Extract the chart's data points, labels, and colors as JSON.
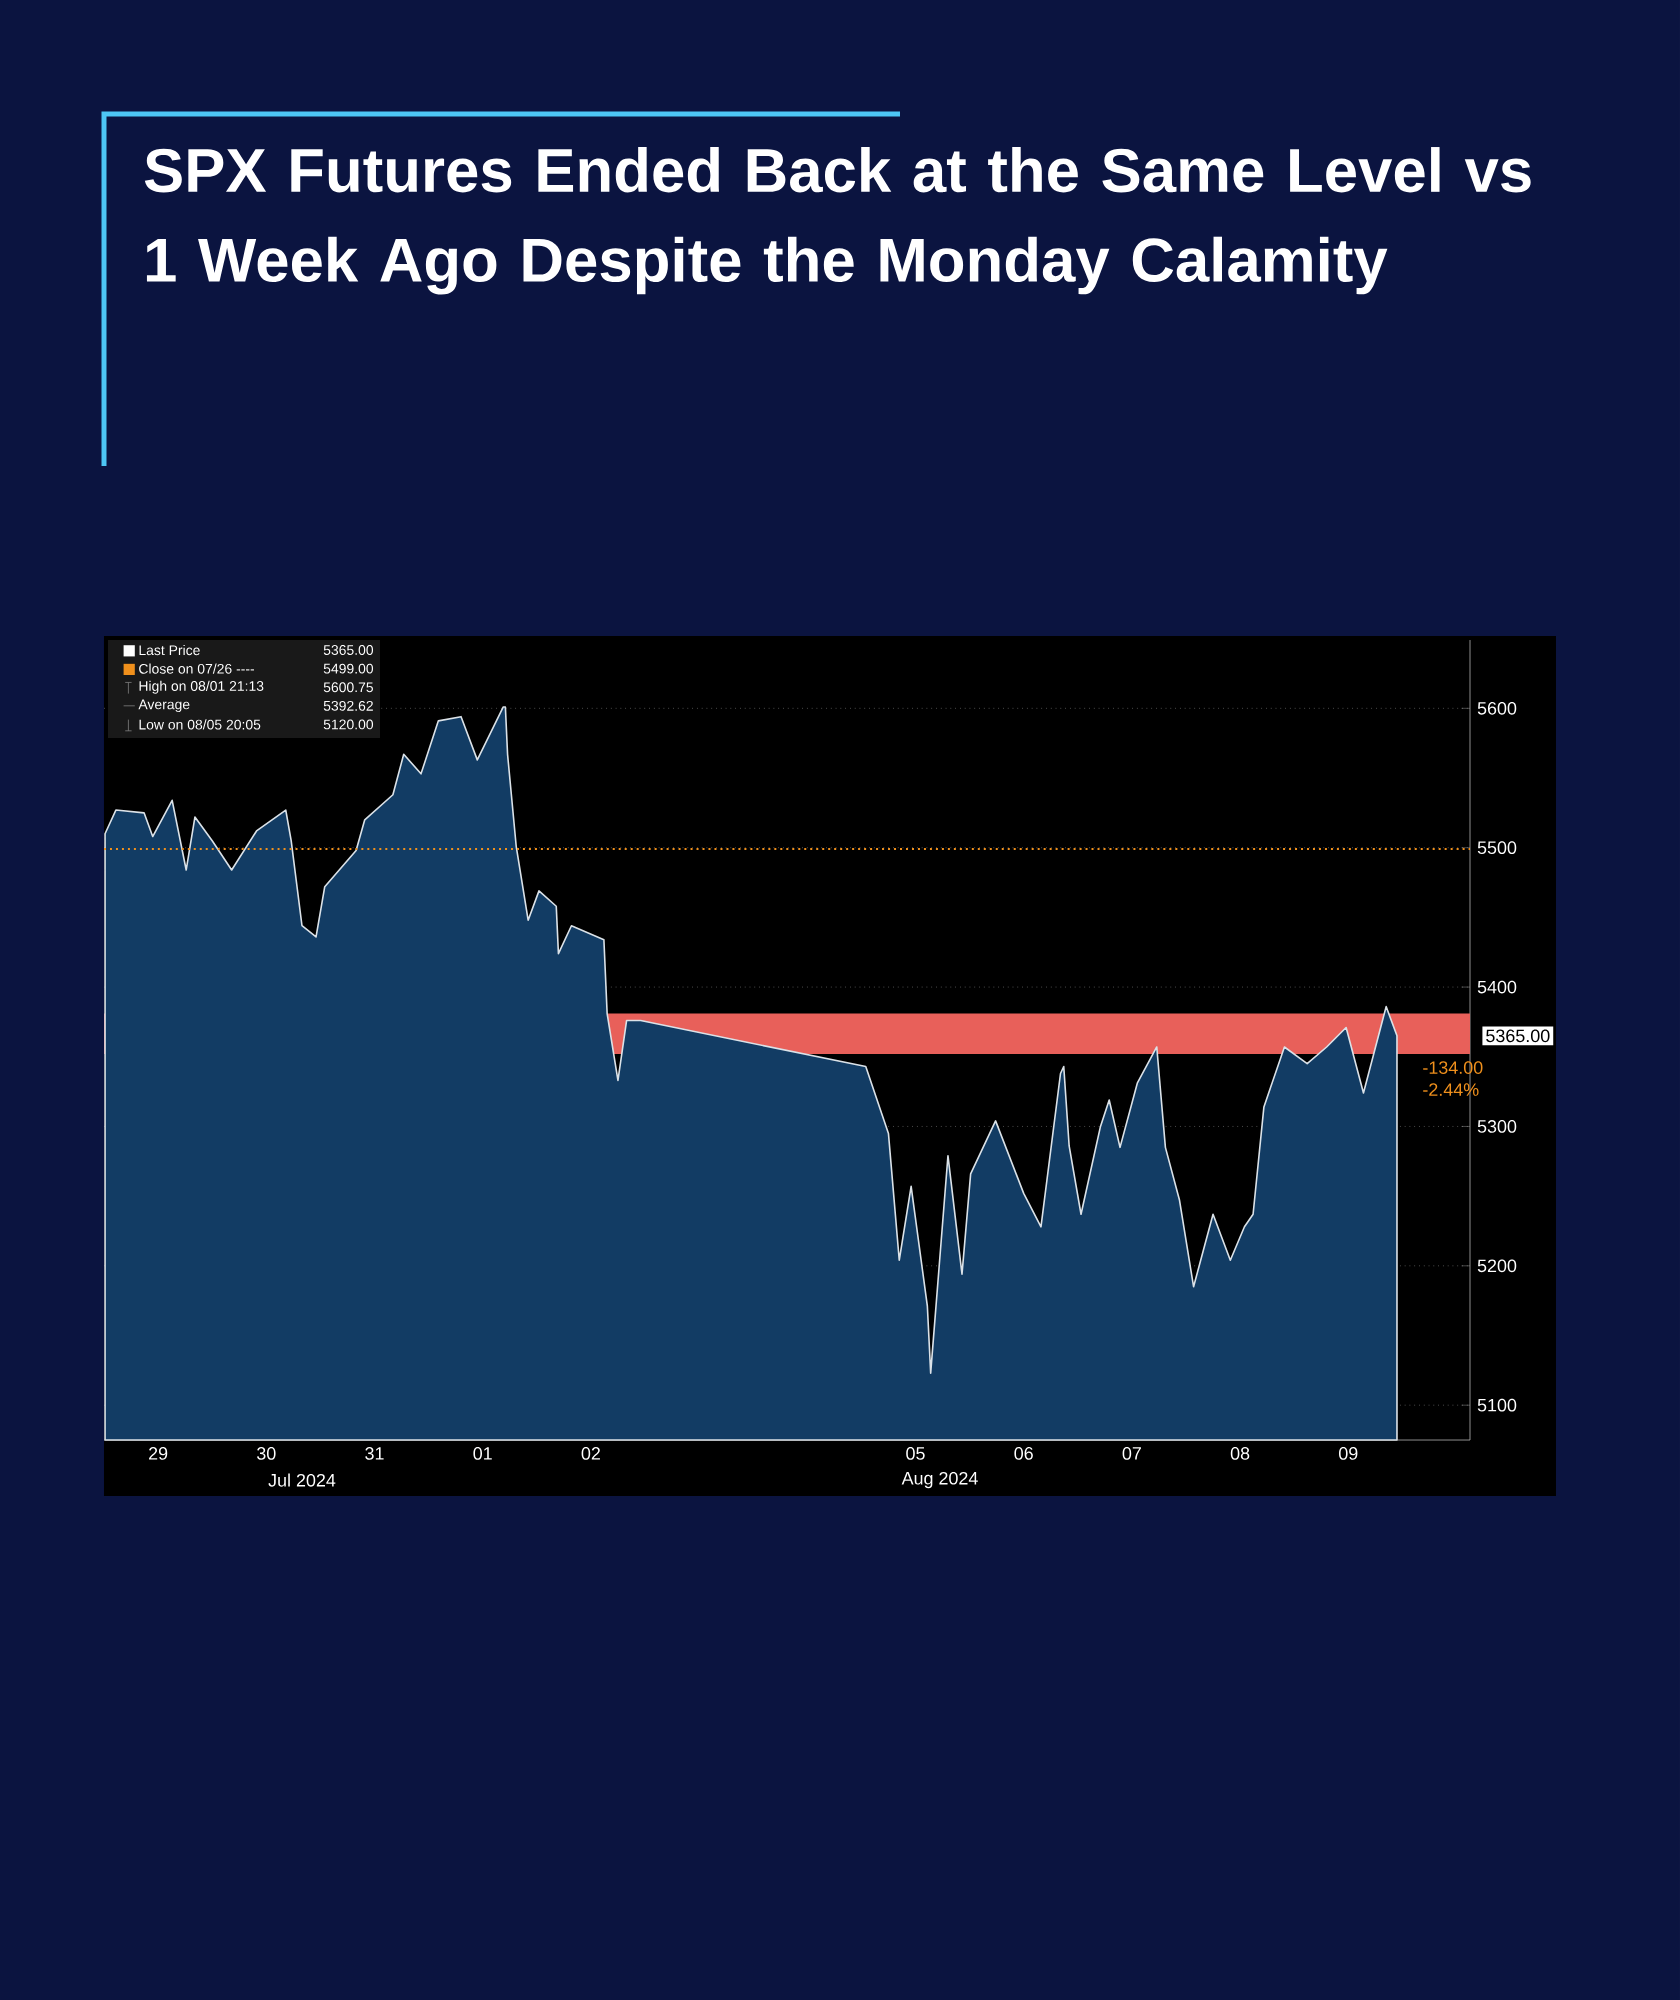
{
  "chart_data": {
    "type": "area",
    "title": "SPX Futures Ended Back at the Same Level vs 1 Week Ago Despite the Monday Calamity",
    "x": [
      "2024-07-29T05:14",
      "2024-07-29T07:38",
      "2024-07-29T13:53",
      "2024-07-29T15:48",
      "2024-07-29T20:07",
      "2024-07-29T23:14",
      "2024-07-30T01:10",
      "2024-07-30T05:00",
      "2024-07-30T09:19",
      "2024-07-30T14:50",
      "2024-07-30T21:19",
      "2024-07-30T22:31",
      "2024-07-31T00:55",
      "2024-07-31T04:02",
      "2024-07-31T05:58",
      "2024-07-31T12:55",
      "2024-07-31T14:50",
      "2024-07-31T21:05",
      "2024-07-31T23:29",
      "2024-08-01T03:19",
      "2024-08-01T07:10",
      "2024-08-01T12:12",
      "2024-08-01T15:48",
      "2024-08-01T21:34",
      "2024-08-01T22:02",
      "2024-08-01T22:31",
      "2024-08-02T00:26",
      "2024-08-02T03:05",
      "2024-08-02T05:29",
      "2024-08-02T09:19",
      "2024-08-02T09:48",
      "2024-08-02T12:41",
      "2024-08-02T19:53",
      "2024-08-02T20:36",
      "2024-08-02T23:00",
      "2024-08-03T00:55",
      "2024-08-03T04:02",
      "2024-08-05T05:58",
      "2024-08-05T11:00",
      "2024-08-05T13:24",
      "2024-08-05T16:02",
      "2024-08-05T19:38",
      "2024-08-05T20:22",
      "2024-08-06T00:12",
      "2024-08-06T03:19",
      "2024-08-06T05:14",
      "2024-08-06T10:46",
      "2024-08-06T17:00",
      "2024-08-06T20:50",
      "2024-08-07T01:10",
      "2024-08-07T01:53",
      "2024-08-07T03:05",
      "2024-08-07T05:43",
      "2024-08-07T10:02",
      "2024-08-07T11:58",
      "2024-08-07T14:22",
      "2024-08-07T18:12",
      "2024-08-07T22:31",
      "2024-08-08T00:26",
      "2024-08-08T03:34",
      "2024-08-08T06:41",
      "2024-08-08T11:00",
      "2024-08-08T14:50",
      "2024-08-08T17:58",
      "2024-08-08T19:53",
      "2024-08-08T22:17",
      "2024-08-09T02:50",
      "2024-08-09T07:53",
      "2024-08-09T12:12",
      "2024-08-09T16:31",
      "2024-08-09T20:22",
      "2024-08-10T01:24",
      "2024-08-10T03:48"
    ],
    "series": [
      {
        "color": "#123c64",
        "values": [
          5510,
          5527,
          5525,
          5508,
          5534,
          5484,
          5522,
          5505,
          5484,
          5512,
          5527,
          5505,
          5444,
          5436,
          5472,
          5498,
          5520,
          5538,
          5567,
          5553,
          5591,
          5594,
          5563,
          5601,
          5601,
          5567,
          5501,
          5448,
          5469,
          5458,
          5424,
          5444,
          5434,
          5381,
          5333,
          5376,
          5376,
          5343,
          5295,
          5204,
          5257,
          5171,
          5123,
          5279,
          5194,
          5266,
          5304,
          5252,
          5228,
          5338,
          5343,
          5286,
          5237,
          5300,
          5319,
          5285,
          5331,
          5357,
          5285,
          5247,
          5185,
          5237,
          5204,
          5228,
          5237,
          5314,
          5357,
          5345,
          5357,
          5371,
          5324,
          5386,
          5365
        ]
      }
    ],
    "xlim": [
      "2024-07-29T05:00",
      "2024-08-10T20:00"
    ],
    "xticks": [
      {
        "value": "2024-07-29T17:00",
        "label": "29"
      },
      {
        "value": "2024-07-30T17:00",
        "label": "30"
      },
      {
        "value": "2024-07-31T17:00",
        "label": "31"
      },
      {
        "value": "2024-08-01T17:00",
        "label": "01"
      },
      {
        "value": "2024-08-02T17:00",
        "label": "02"
      },
      {
        "value": "2024-08-05T17:00",
        "label": "05"
      },
      {
        "value": "2024-08-06T17:00",
        "label": "06"
      },
      {
        "value": "2024-08-07T17:00",
        "label": "07"
      },
      {
        "value": "2024-08-08T17:00",
        "label": "08"
      },
      {
        "value": "2024-08-09T17:00",
        "label": "09"
      }
    ],
    "ylim": [
      5075,
      5649
    ],
    "yticks": [
      5100,
      5200,
      5300,
      5400,
      5500,
      5600
    ],
    "grid": "y",
    "ref_lines": [
      {
        "axis": "y",
        "value": 5499,
        "color": "#f0901c",
        "line_style": "dotted"
      }
    ],
    "bands": [
      {
        "axis": "y",
        "from": 5352,
        "to": 5381,
        "color": "#e8605a"
      }
    ],
    "annotations": [
      "Last Price",
      "5365.00",
      "Close on 07/26 ----",
      "5499.00",
      "High on 08/01 21:13",
      "5600.75",
      "Average",
      "5392.62",
      "Low on 08/05 20:05",
      "5120.00",
      "Jul 2024",
      "Aug 2024",
      "5365.00",
      "-134.00",
      "-2.44%"
    ]
  }
}
